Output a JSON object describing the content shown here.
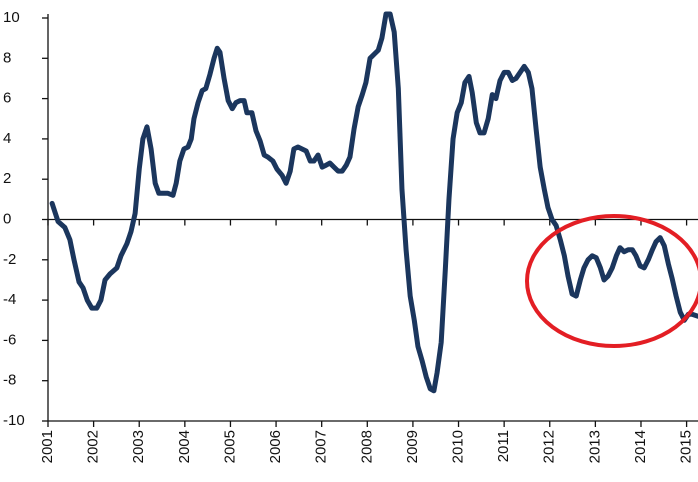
{
  "chart_data": {
    "type": "line",
    "color": "#1b365d",
    "xlim": [
      2001,
      2015.25
    ],
    "ylim": [
      -10,
      10
    ],
    "xticks": [
      2001,
      2002,
      2003,
      2004,
      2005,
      2006,
      2007,
      2008,
      2009,
      2010,
      2011,
      2012,
      2013,
      2014,
      2015
    ],
    "yticks": [
      -10,
      -8,
      -6,
      -4,
      -2,
      0,
      2,
      4,
      6,
      8,
      10
    ],
    "x": [
      2001.09,
      2001.22,
      2001.37,
      2001.48,
      2001.57,
      2001.68,
      2001.77,
      2001.86,
      2001.96,
      2002.07,
      2002.16,
      2002.25,
      2002.36,
      2002.51,
      2002.6,
      2002.73,
      2002.82,
      2002.91,
      2003.0,
      2003.08,
      2003.17,
      2003.26,
      2003.35,
      2003.43,
      2003.52,
      2003.63,
      2003.74,
      2003.81,
      2003.89,
      2003.98,
      2004.07,
      2004.14,
      2004.2,
      2004.29,
      2004.38,
      2004.46,
      2004.55,
      2004.64,
      2004.71,
      2004.77,
      2004.86,
      2004.95,
      2005.04,
      2005.12,
      2005.21,
      2005.3,
      2005.36,
      2005.47,
      2005.56,
      2005.65,
      2005.74,
      2005.82,
      2005.93,
      2006.02,
      2006.13,
      2006.22,
      2006.31,
      2006.39,
      2006.48,
      2006.57,
      2006.66,
      2006.75,
      2006.83,
      2006.92,
      2007.01,
      2007.1,
      2007.18,
      2007.27,
      2007.36,
      2007.45,
      2007.54,
      2007.62,
      2007.71,
      2007.8,
      2007.89,
      2007.97,
      2008.06,
      2008.15,
      2008.24,
      2008.32,
      2008.41,
      2008.5,
      2008.59,
      2008.68,
      2008.76,
      2008.85,
      2008.94,
      2009.03,
      2009.11,
      2009.2,
      2009.29,
      2009.38,
      2009.46,
      2009.53,
      2009.62,
      2009.71,
      2009.79,
      2009.88,
      2009.97,
      2010.06,
      2010.14,
      2010.23,
      2010.3,
      2010.39,
      2010.47,
      2010.56,
      2010.65,
      2010.74,
      2010.82,
      2010.91,
      2011.0,
      2011.09,
      2011.18,
      2011.26,
      2011.35,
      2011.44,
      2011.53,
      2011.61,
      2011.7,
      2011.79,
      2011.88,
      2011.96,
      2012.05,
      2012.14,
      2012.23,
      2012.32,
      2012.4,
      2012.49,
      2012.58,
      2012.67,
      2012.75,
      2012.84,
      2012.93,
      2013.02,
      2013.11,
      2013.19,
      2013.28,
      2013.37,
      2013.46,
      2013.54,
      2013.63,
      2013.72,
      2013.81,
      2013.89,
      2013.98,
      2014.07,
      2014.16,
      2014.25,
      2014.33,
      2014.42,
      2014.51,
      2014.6,
      2014.68,
      2014.77,
      2014.86,
      2014.95,
      2015.04,
      2015.12,
      2015.25
    ],
    "values": [
      0.8,
      -0.1,
      -0.4,
      -1,
      -2,
      -3.1,
      -3.4,
      -4,
      -4.4,
      -4.4,
      -4,
      -3,
      -2.7,
      -2.4,
      -1.8,
      -1.2,
      -0.6,
      0.3,
      2.5,
      4,
      4.6,
      3.5,
      1.8,
      1.3,
      1.3,
      1.3,
      1.2,
      1.8,
      2.9,
      3.5,
      3.6,
      4,
      5,
      5.8,
      6.4,
      6.5,
      7.2,
      8,
      8.5,
      8.3,
      7,
      5.9,
      5.5,
      5.8,
      5.9,
      5.9,
      5.3,
      5.3,
      4.4,
      3.9,
      3.2,
      3.1,
      2.9,
      2.5,
      2.2,
      1.8,
      2.4,
      3.5,
      3.6,
      3.5,
      3.4,
      2.9,
      2.9,
      3.2,
      2.6,
      2.7,
      2.8,
      2.6,
      2.4,
      2.4,
      2.7,
      3.1,
      4.5,
      5.6,
      6.2,
      6.8,
      8,
      8.2,
      8.4,
      9,
      10.2,
      10.2,
      9.3,
      6.5,
      1.5,
      -1.5,
      -3.8,
      -5,
      -6.3,
      -7,
      -7.8,
      -8.4,
      -8.5,
      -7.6,
      -6.1,
      -2.5,
      1,
      4,
      5.3,
      5.8,
      6.8,
      7.1,
      6.3,
      4.8,
      4.3,
      4.3,
      5,
      6.2,
      6,
      6.9,
      7.3,
      7.3,
      6.9,
      7,
      7.3,
      7.6,
      7.3,
      6.5,
      4.5,
      2.6,
      1.5,
      0.6,
      0,
      -0.3,
      -1,
      -1.8,
      -2.8,
      -3.7,
      -3.8,
      -3,
      -2.4,
      -2,
      -1.8,
      -1.9,
      -2.4,
      -3,
      -2.8,
      -2.4,
      -1.8,
      -1.4,
      -1.6,
      -1.5,
      -1.5,
      -1.8,
      -2.3,
      -2.4,
      -2,
      -1.5,
      -1.1,
      -0.9,
      -1.3,
      -2.2,
      -2.9,
      -3.8,
      -4.6,
      -5,
      -4.7,
      -4.7,
      -4.8
    ]
  }
}
